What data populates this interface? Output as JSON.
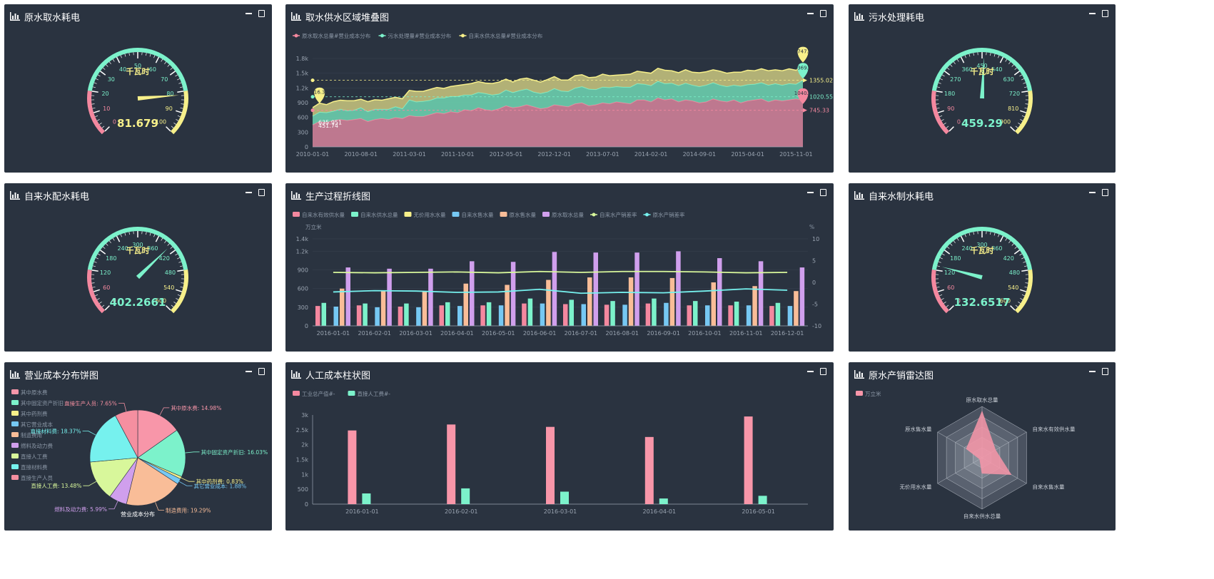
{
  "titles": {
    "p1": "原水取水耗电",
    "p2": "取水供水区域堆叠图",
    "p3": "污水处理耗电",
    "p4": "自来水配水耗电",
    "p5": "生产过程折线图",
    "p6": "自来水制水耗电",
    "p7": "营业成本分布饼图",
    "p8": "人工成本柱状图",
    "p9": "原水产销雷达图"
  },
  "gauges": {
    "g1": {
      "unit": "千瓦时",
      "value": "81.679",
      "ticks": [
        "0",
        "10",
        "20",
        "30",
        "40",
        "50",
        "60",
        "70",
        "80",
        "90",
        "100"
      ],
      "fraction": 0.817
    },
    "g3": {
      "unit": "千瓦时",
      "value": "459.29",
      "ticks": [
        "0",
        "90",
        "180",
        "270",
        "360",
        "450",
        "540",
        "630",
        "720",
        "810",
        "900"
      ],
      "fraction": 0.51
    },
    "g4": {
      "unit": "千瓦时",
      "value": "402.2661",
      "ticks": [
        "0",
        "60",
        "120",
        "180",
        "240",
        "300",
        "360",
        "420",
        "480",
        "540",
        "600"
      ],
      "fraction": 0.67
    },
    "g6": {
      "unit": "千瓦时",
      "value": "132.6517",
      "ticks": [
        "0",
        "60",
        "120",
        "180",
        "240",
        "300",
        "360",
        "420",
        "480",
        "540",
        "600"
      ],
      "fraction": 0.221
    }
  },
  "colors": {
    "red": "#f4889f",
    "green": "#7cf2cb",
    "yellow": "#f7f08a",
    "blue": "#76c8f3",
    "orange": "#f9bd98",
    "purple": "#d09fed",
    "cyan": "#76f1ee",
    "lime": "#d8f79b"
  },
  "chart_data": [
    {
      "id": "area",
      "type": "area",
      "legend": [
        "原水取水总量#营业成本分布",
        "污水处理量#营业成本分布",
        "自来水供水总量#营业成本分布"
      ],
      "x_ticks": [
        "2010-01-01",
        "2010-08-01",
        "2011-03-01",
        "2011-10-01",
        "2012-05-01",
        "2012-12-01",
        "2013-07-01",
        "2014-02-01",
        "2014-09-01",
        "2015-04-01",
        "2015-11-01"
      ],
      "y_ticks": [
        "0",
        "300",
        "600",
        "900",
        "1.2k",
        "1.5k",
        "1.8k"
      ],
      "ylim": [
        0,
        1800
      ],
      "series": [
        {
          "values": [
            450,
            520,
            500,
            540,
            560,
            540,
            560,
            580,
            520,
            560,
            580,
            560,
            600,
            580,
            640,
            620,
            620,
            660,
            700,
            680,
            720,
            700,
            760,
            740,
            800,
            760,
            740,
            780,
            840,
            800,
            820,
            860,
            820,
            780,
            800,
            860,
            840,
            820,
            880,
            900,
            840,
            860,
            900,
            880,
            920,
            900,
            880,
            960,
            960,
            920,
            1000,
            960,
            980,
            920,
            960,
            940,
            900,
            920,
            980,
            940,
            920,
            960,
            900,
            940,
            960,
            980,
            920,
            960,
            940,
            960,
            980,
            960
          ]
        },
        {
          "values": [
            180,
            190,
            200,
            190,
            210,
            200,
            190,
            220,
            200,
            210,
            190,
            210,
            220,
            200,
            320,
            300,
            310,
            290,
            300,
            320,
            310,
            330,
            300,
            320,
            310,
            330,
            320,
            300,
            320,
            310,
            330,
            320,
            300,
            310,
            320,
            330,
            300,
            310,
            320,
            330,
            340,
            310,
            320,
            330,
            310,
            320,
            340,
            330,
            320,
            330,
            340,
            330,
            320,
            330,
            340,
            320,
            330,
            340,
            330,
            320,
            310,
            300,
            340,
            330,
            320,
            330,
            340,
            330,
            320,
            330,
            300,
            400
          ]
        },
        {
          "values": [
            170,
            180,
            160,
            190,
            180,
            200,
            190,
            170,
            200,
            190,
            180,
            210,
            190,
            200,
            190,
            210,
            200,
            220,
            210,
            190,
            200,
            220,
            210,
            230,
            220,
            210,
            230,
            240,
            220,
            210,
            230,
            220,
            240,
            230,
            250,
            240,
            220,
            230,
            250,
            240,
            230,
            250,
            260,
            240,
            230,
            250,
            260,
            250,
            240,
            250,
            260,
            270,
            250,
            260,
            270,
            260,
            280,
            270,
            260,
            280,
            270,
            260,
            280,
            290,
            270,
            280,
            290,
            280,
            290,
            300,
            280,
            300
          ]
        }
      ],
      "markers": {
        "red_max": "1040.0",
        "red_avg": "745.33",
        "green_max": "1369.5",
        "green_avg": "1020.55",
        "yellow_max": "1747.5",
        "yellow_avg": "1355.02",
        "red_min": "451.74",
        "green_min": "635.951",
        "yellow_min": "816.33"
      }
    },
    {
      "id": "production",
      "type": "bar",
      "legend": [
        "自来水有效供水量",
        "自来水供水总量",
        "无价用水水量",
        "自来水售水量",
        "原水售水量",
        "原水取水总量",
        "自来水产销差率",
        "原水产销差率"
      ],
      "left_unit": "万立米",
      "right_unit": "%",
      "categories": [
        "2016-01-01",
        "2016-02-01",
        "2016-03-01",
        "2016-04-01",
        "2016-05-01",
        "2016-06-01",
        "2016-07-01",
        "2016-08-01",
        "2016-09-01",
        "2016-10-01",
        "2016-11-01",
        "2016-12-01"
      ],
      "y_ticks": [
        "0",
        "300",
        "600",
        "900",
        "1.2k",
        "1.4k"
      ],
      "y2_ticks": [
        "10",
        "5",
        "0",
        "-5",
        "-10"
      ],
      "ylim": [
        0,
        1400
      ],
      "y2lim": [
        -10,
        10
      ],
      "series": [
        {
          "name": "自来水有效供水量",
          "values": [
            320,
            330,
            310,
            330,
            330,
            360,
            350,
            340,
            360,
            330,
            330,
            320
          ]
        },
        {
          "name": "自来水供水总量",
          "values": [
            370,
            360,
            360,
            380,
            380,
            440,
            420,
            400,
            440,
            400,
            390,
            370
          ]
        },
        {
          "name": "无价用水水量",
          "values": [
            0,
            0,
            0,
            0,
            0,
            0,
            0,
            0,
            0,
            0,
            0,
            0
          ]
        },
        {
          "name": "自来水售水量",
          "values": [
            310,
            300,
            300,
            320,
            330,
            360,
            350,
            340,
            370,
            330,
            330,
            320
          ]
        },
        {
          "name": "原水售水量",
          "values": [
            600,
            560,
            560,
            680,
            660,
            740,
            780,
            780,
            770,
            700,
            640,
            560
          ]
        },
        {
          "name": "原水取水总量",
          "values": [
            940,
            920,
            920,
            1040,
            1030,
            1190,
            1180,
            1180,
            1200,
            1090,
            1040,
            940
          ]
        },
        {
          "name": "自来水产销差率",
          "values": [
            2.3,
            2.2,
            2.3,
            2.4,
            2.2,
            2.5,
            2.3,
            2.5,
            2.5,
            2.4,
            2.2,
            2.3
          ]
        },
        {
          "name": "原水产销差率",
          "values": [
            -2.2,
            -1.9,
            -2.0,
            -2.3,
            -2.2,
            -1.6,
            -2.5,
            -2.3,
            -2.4,
            -2.0,
            -1.5,
            -1.8
          ]
        }
      ]
    },
    {
      "id": "pie",
      "type": "pie",
      "legend": [
        "其中原水费",
        "其中固定资产折旧",
        "其中药剂费",
        "其它营业成本",
        "制造费用",
        "燃料及动力费",
        "直接人工费",
        "直接材料费",
        "直接生产人员"
      ],
      "center_label": "营业成本分布",
      "slices": [
        {
          "name": "其中原水费",
          "value": 14.98,
          "label": "其中原水费: 14.98%"
        },
        {
          "name": "其中固定资产折旧",
          "value": 16.03,
          "label": "其中固定资产折旧: 16.03%"
        },
        {
          "name": "其中药剂费",
          "value": 0.83,
          "label": "其中药剂费: 0.83%"
        },
        {
          "name": "其它营业成本",
          "value": 1.88,
          "label": "其它营业成本: 1.88%"
        },
        {
          "name": "制造费用",
          "value": 19.29,
          "label": "制造费用: 19.29%"
        },
        {
          "name": "燃料及动力费",
          "value": 5.99,
          "label": "燃料及动力费: 5.99%"
        },
        {
          "name": "直接人工费",
          "value": 13.48,
          "label": "直接人工费: 13.48%"
        },
        {
          "name": "直接材料费",
          "value": 18.37,
          "label": "直接材料费: 18.37%"
        },
        {
          "name": "直接生产人员",
          "value": 7.65,
          "label": "直接生产人员: 7.65%"
        }
      ]
    },
    {
      "id": "labor",
      "type": "bar",
      "legend": [
        "工业总产值#-",
        "直接人工费#-"
      ],
      "categories": [
        "2016-01-01",
        "2016-02-01",
        "2016-03-01",
        "2016-04-01",
        "2016-05-01"
      ],
      "y_ticks": [
        "0",
        "500",
        "1k",
        "1.5k",
        "2k",
        "2.5k",
        "3k"
      ],
      "ylim": [
        0,
        3000
      ],
      "series": [
        {
          "name": "工业总产值#-",
          "values": [
            2480,
            2680,
            2600,
            2260,
            2950
          ]
        },
        {
          "name": "直接人工费#-",
          "values": [
            360,
            530,
            420,
            190,
            280
          ]
        }
      ]
    },
    {
      "id": "radar",
      "type": "radar",
      "legend": [
        "万立米"
      ],
      "indicators": [
        "原水取水总量",
        "自来水有效供水量",
        "自来水售水量",
        "自来水供水总量",
        "无价用水水量",
        "原水售水量"
      ],
      "values": [
        0.9,
        0.3,
        0.65,
        0.3,
        0.05,
        0.35
      ]
    }
  ]
}
